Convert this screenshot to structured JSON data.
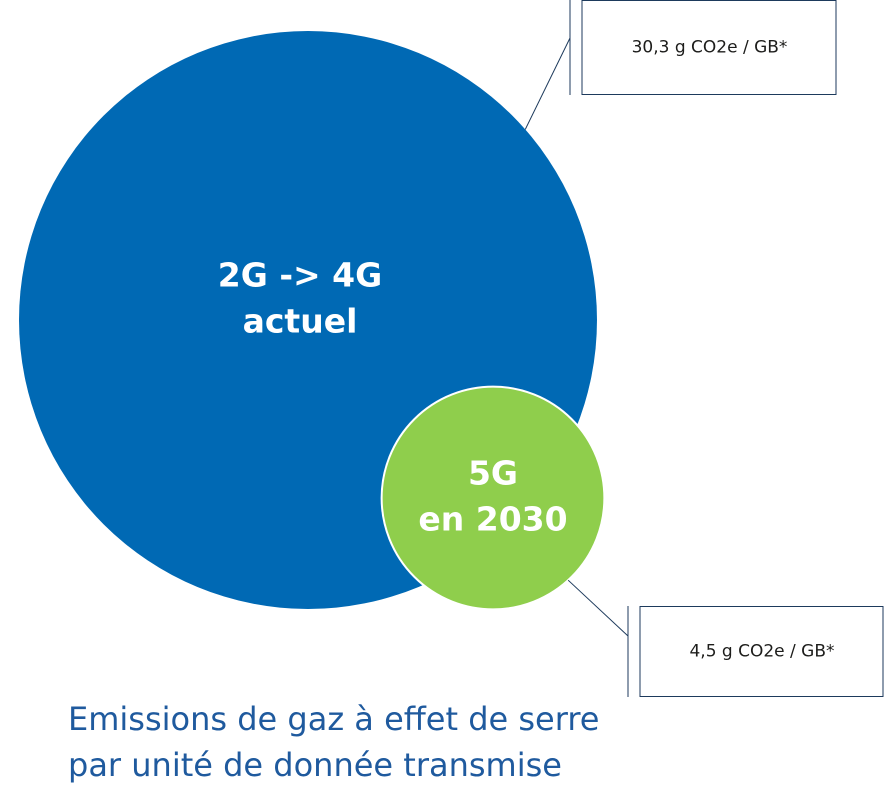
{
  "chart_data": {
    "type": "bubble",
    "categories": [
      [
        "2G -> 4G",
        "actuel"
      ],
      [
        "5G",
        "en 2030"
      ]
    ],
    "values": [
      30.3,
      4.5
    ],
    "value_labels": [
      "30,3 g CO2e / GB*",
      "4,5 g CO2e / GB*"
    ],
    "colors": [
      "#0069b4",
      "#8fce4c"
    ],
    "title": [
      "Emissions de gaz à effet de serre",
      "par unité de donnée transmise"
    ]
  }
}
